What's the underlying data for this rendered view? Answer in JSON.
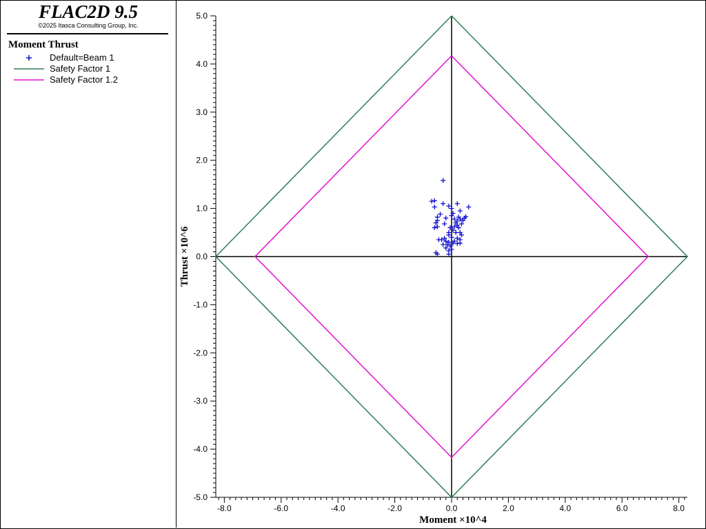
{
  "header": {
    "app_title": "FLAC2D 9.5",
    "copyright": "©2025 Itasca Consulting Group, Inc."
  },
  "legend": {
    "heading": "Moment Thrust",
    "items": [
      {
        "label": "Default=Beam 1",
        "symbol": "plus-marker",
        "color": "#1010cc"
      },
      {
        "label": "Safety Factor 1",
        "symbol": "line",
        "color": "#2e7d52"
      },
      {
        "label": "Safety Factor 1.2",
        "symbol": "line",
        "color": "#e010d0"
      }
    ]
  },
  "chart_data": {
    "type": "scatter",
    "xlabel": "Moment ×10^4",
    "ylabel": "Thrust ×10^6",
    "xlim": [
      -8.3,
      8.3
    ],
    "ylim": [
      -5.0,
      5.0
    ],
    "x_ticks": [
      "-8.0",
      "-6.0",
      "-4.0",
      "-2.0",
      "0.0",
      "2.0",
      "4.0",
      "6.0",
      "8.0"
    ],
    "y_ticks": [
      "5.0",
      "4.0",
      "3.0",
      "2.0",
      "1.0",
      "0.0",
      "-1.0",
      "-2.0",
      "-3.0",
      "-4.0",
      "-5.0"
    ],
    "grid": false,
    "series": [
      {
        "name": "Default=Beam 1",
        "kind": "scatter",
        "color": "#1010cc",
        "points": [
          [
            -0.3,
            1.58
          ],
          [
            -0.6,
            1.16
          ],
          [
            -0.7,
            1.15
          ],
          [
            -0.6,
            1.03
          ],
          [
            -0.1,
            1.05
          ],
          [
            0.0,
            1.0
          ],
          [
            0.2,
            1.1
          ],
          [
            0.6,
            1.03
          ],
          [
            -0.3,
            1.1
          ],
          [
            0.3,
            0.95
          ],
          [
            -0.4,
            0.88
          ],
          [
            -0.5,
            0.82
          ],
          [
            -0.5,
            0.75
          ],
          [
            -0.55,
            0.7
          ],
          [
            -0.2,
            0.8
          ],
          [
            0.0,
            0.85
          ],
          [
            0.1,
            0.78
          ],
          [
            0.2,
            0.74
          ],
          [
            0.3,
            0.78
          ],
          [
            0.4,
            0.75
          ],
          [
            0.45,
            0.8
          ],
          [
            0.5,
            0.83
          ],
          [
            0.15,
            0.7
          ],
          [
            0.2,
            0.65
          ],
          [
            0.25,
            0.6
          ],
          [
            0.1,
            0.62
          ],
          [
            0.35,
            0.68
          ],
          [
            -0.25,
            0.68
          ],
          [
            -0.5,
            0.62
          ],
          [
            -0.6,
            0.6
          ],
          [
            -0.1,
            0.5
          ],
          [
            0.05,
            0.55
          ],
          [
            0.3,
            0.5
          ],
          [
            0.35,
            0.45
          ],
          [
            -0.1,
            0.45
          ],
          [
            0.0,
            0.4
          ],
          [
            0.2,
            0.38
          ],
          [
            0.3,
            0.35
          ],
          [
            -0.25,
            0.38
          ],
          [
            -0.35,
            0.35
          ],
          [
            -0.45,
            0.35
          ],
          [
            -0.2,
            0.32
          ],
          [
            -0.1,
            0.3
          ],
          [
            0.05,
            0.28
          ],
          [
            0.2,
            0.27
          ],
          [
            0.3,
            0.28
          ],
          [
            -0.3,
            0.25
          ],
          [
            -0.15,
            0.25
          ],
          [
            -0.05,
            0.22
          ],
          [
            -0.2,
            0.18
          ],
          [
            0.0,
            0.15
          ],
          [
            -0.1,
            0.12
          ],
          [
            -0.55,
            0.08
          ],
          [
            -0.5,
            0.05
          ],
          [
            -0.1,
            0.05
          ],
          [
            0.1,
            0.32
          ],
          [
            0.15,
            0.5
          ],
          [
            -0.05,
            0.6
          ],
          [
            0.25,
            0.82
          ],
          [
            0.05,
            0.9
          ]
        ]
      },
      {
        "name": "Safety Factor 1",
        "kind": "line",
        "color": "#2e7d52",
        "points": [
          [
            0.0,
            5.0
          ],
          [
            8.3,
            0.0
          ],
          [
            0.0,
            -5.0
          ],
          [
            -8.3,
            0.0
          ],
          [
            0.0,
            5.0
          ]
        ]
      },
      {
        "name": "Safety Factor 1.2",
        "kind": "line",
        "color": "#e010d0",
        "points": [
          [
            0.0,
            4.17
          ],
          [
            6.92,
            0.0
          ],
          [
            0.0,
            -4.17
          ],
          [
            -6.92,
            0.0
          ],
          [
            0.0,
            4.17
          ]
        ]
      }
    ]
  }
}
